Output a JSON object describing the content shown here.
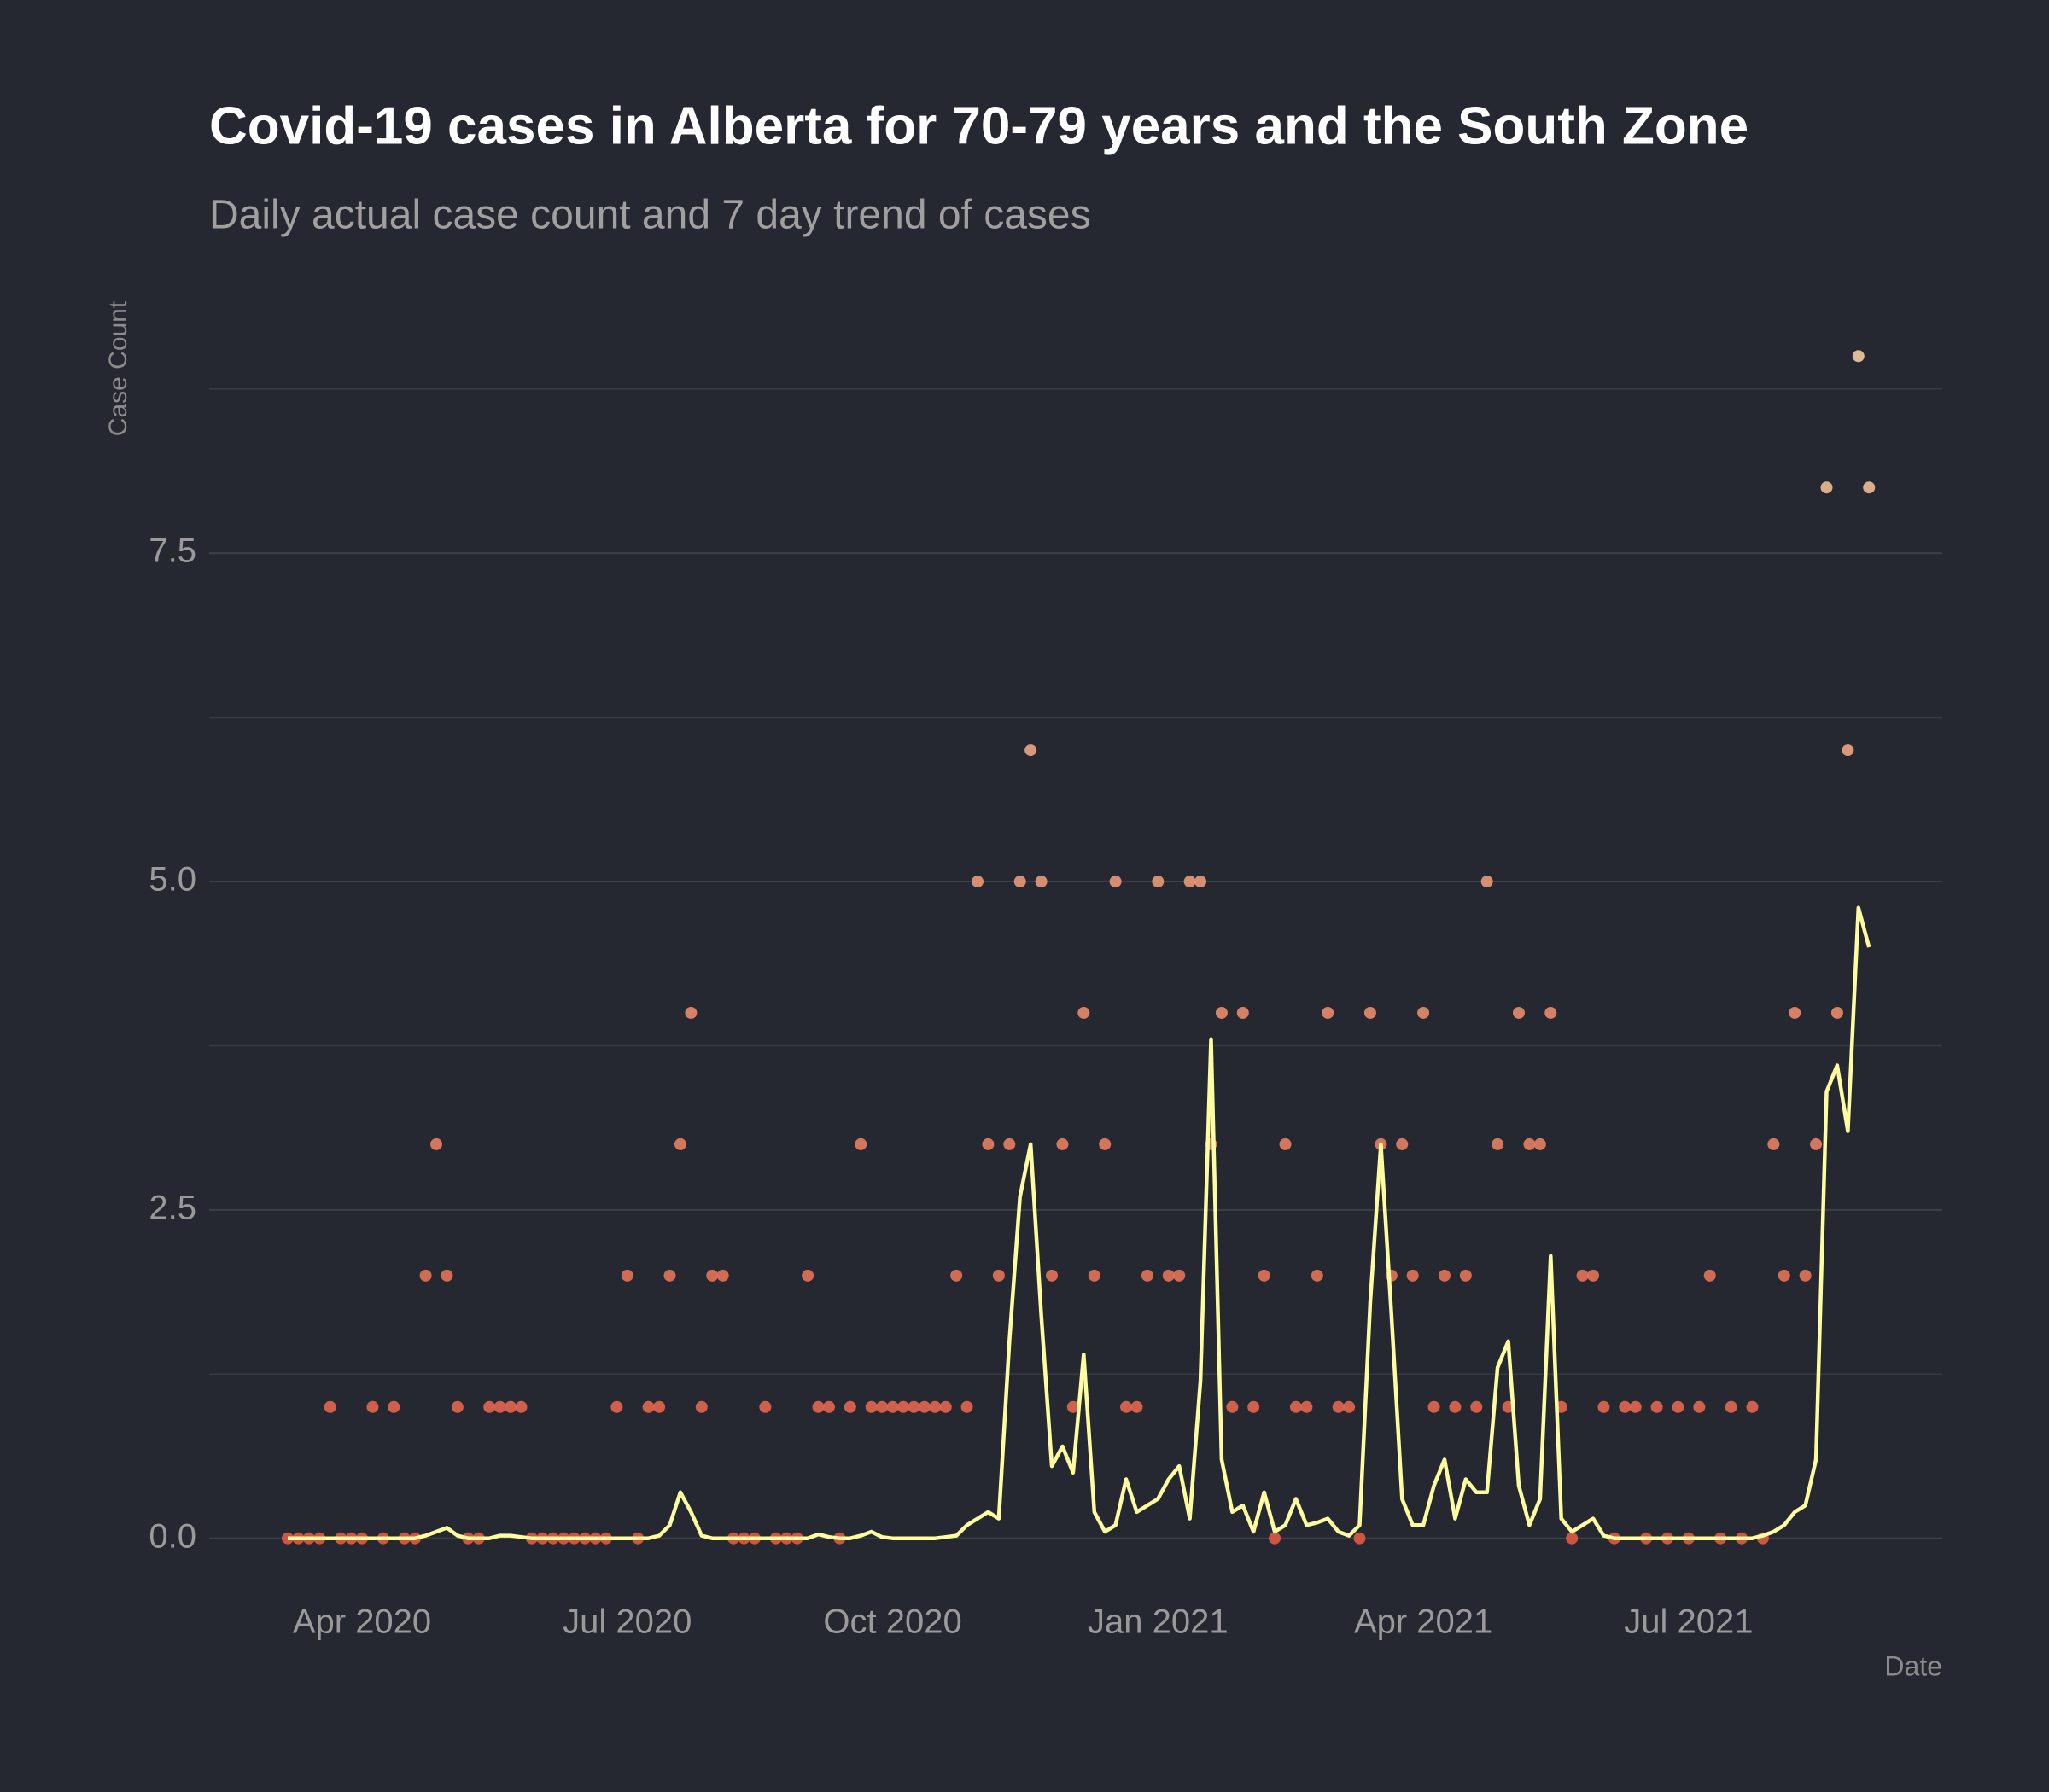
{
  "chart_data": {
    "type": "scatter",
    "title": "Covid-19 cases in Alberta for 70-79 years and the South Zone",
    "subtitle": "Daily actual case count and 7 day trend of cases",
    "y_label": "Case Count",
    "x_label": "Date",
    "x": [
      2020.18,
      2020.19,
      2020.2,
      2020.21,
      2020.22,
      2020.23,
      2020.24,
      2020.25,
      2020.26,
      2020.27,
      2020.28,
      2020.29,
      2020.3,
      2020.31,
      2020.32,
      2020.33,
      2020.34,
      2020.35,
      2020.36,
      2020.37,
      2020.38,
      2020.39,
      2020.4,
      2020.41,
      2020.42,
      2020.43,
      2020.44,
      2020.45,
      2020.46,
      2020.47,
      2020.48,
      2020.49,
      2020.5,
      2020.51,
      2020.52,
      2020.53,
      2020.54,
      2020.55,
      2020.56,
      2020.57,
      2020.58,
      2020.59,
      2020.6,
      2020.61,
      2020.62,
      2020.63,
      2020.64,
      2020.65,
      2020.66,
      2020.67,
      2020.68,
      2020.69,
      2020.7,
      2020.71,
      2020.72,
      2020.73,
      2020.74,
      2020.75,
      2020.76,
      2020.77,
      2020.78,
      2020.79,
      2020.8,
      2020.81,
      2020.82,
      2020.83,
      2020.84,
      2020.85,
      2020.86,
      2020.87,
      2020.88,
      2020.89,
      2020.9,
      2020.91,
      2020.92,
      2020.93,
      2020.94,
      2020.95,
      2020.96,
      2020.97,
      2020.98,
      2020.99,
      2021.0,
      2021.01,
      2021.02,
      2021.03,
      2021.04,
      2021.05,
      2021.06,
      2021.07,
      2021.08,
      2021.09,
      2021.1,
      2021.11,
      2021.12,
      2021.13,
      2021.14,
      2021.15,
      2021.16,
      2021.17,
      2021.18,
      2021.19,
      2021.2,
      2021.21,
      2021.22,
      2021.23,
      2021.24,
      2021.25,
      2021.26,
      2021.27,
      2021.28,
      2021.29,
      2021.3,
      2021.31,
      2021.32,
      2021.33,
      2021.34,
      2021.35,
      2021.36,
      2021.37,
      2021.38,
      2021.39,
      2021.4,
      2021.41,
      2021.42,
      2021.43,
      2021.44,
      2021.45,
      2021.46,
      2021.47,
      2021.48,
      2021.49,
      2021.5,
      2021.51,
      2021.52,
      2021.53,
      2021.54,
      2021.55,
      2021.56,
      2021.57,
      2021.58,
      2021.59,
      2021.6,
      2021.61,
      2021.62,
      2021.63,
      2021.64,
      2021.65,
      2021.66,
      2021.67
    ],
    "series": [
      {
        "type": "scatter",
        "color_low": "#e05a45",
        "color_high": "#f2c9a0",
        "values": [
          0,
          0,
          0,
          0,
          1,
          0,
          0,
          0,
          1,
          0,
          1,
          0,
          0,
          2,
          3,
          2,
          1,
          0,
          0,
          1,
          1,
          1,
          1,
          0,
          0,
          0,
          0,
          0,
          0,
          0,
          0,
          1,
          2,
          0,
          1,
          1,
          2,
          3,
          4,
          1,
          2,
          2,
          0,
          0,
          0,
          1,
          0,
          0,
          0,
          2,
          1,
          1,
          0,
          1,
          3,
          1,
          1,
          1,
          1,
          1,
          1,
          1,
          1,
          2,
          1,
          5,
          3,
          2,
          3,
          5,
          6,
          5,
          2,
          3,
          1,
          4,
          2,
          3,
          5,
          1,
          1,
          2,
          5,
          2,
          2,
          5,
          5,
          3,
          4,
          1,
          4,
          1,
          2,
          0,
          3,
          1,
          1,
          2,
          4,
          1,
          1,
          0,
          4,
          3,
          2,
          3,
          2,
          4,
          1,
          2,
          1,
          2,
          1,
          5,
          3,
          1,
          4,
          3,
          3,
          4,
          1,
          0,
          2,
          2,
          1,
          0,
          1,
          1,
          0,
          1,
          0,
          1,
          0,
          1,
          2,
          0,
          1,
          0,
          1,
          0,
          3,
          2,
          4,
          2,
          3,
          8,
          4,
          6,
          9,
          8
        ]
      },
      {
        "type": "line",
        "color": "#fdfca0",
        "values": [
          0,
          0,
          0,
          0,
          0,
          0,
          0,
          0,
          0,
          0,
          0,
          0,
          0,
          0.02,
          0.05,
          0.08,
          0.02,
          0,
          0,
          0,
          0.02,
          0.02,
          0.01,
          0,
          0,
          0,
          0,
          0,
          0,
          0,
          0,
          0,
          0,
          0,
          0,
          0.02,
          0.1,
          0.35,
          0.2,
          0.02,
          0,
          0,
          0,
          0,
          0,
          0,
          0,
          0,
          0,
          0,
          0.03,
          0.01,
          0,
          0,
          0.02,
          0.05,
          0.01,
          0,
          0,
          0,
          0,
          0,
          0.01,
          0.02,
          0.1,
          0.15,
          0.2,
          0.15,
          1.5,
          2.6,
          3.0,
          1.7,
          0.55,
          0.7,
          0.5,
          1.4,
          0.2,
          0.05,
          0.1,
          0.45,
          0.2,
          0.25,
          0.3,
          0.45,
          0.55,
          0.15,
          1.2,
          3.8,
          0.6,
          0.2,
          0.25,
          0.05,
          0.35,
          0.05,
          0.1,
          0.3,
          0.1,
          0.12,
          0.15,
          0.05,
          0.02,
          0.1,
          1.8,
          3.0,
          1.7,
          0.3,
          0.1,
          0.1,
          0.4,
          0.6,
          0.15,
          0.45,
          0.35,
          0.35,
          1.3,
          1.5,
          0.4,
          0.1,
          0.3,
          2.15,
          0.15,
          0.05,
          0.1,
          0.15,
          0.02,
          0,
          0,
          0,
          0,
          0,
          0,
          0,
          0,
          0,
          0,
          0,
          0,
          0,
          0,
          0.02,
          0.05,
          0.1,
          0.2,
          0.25,
          0.6,
          3.4,
          3.6,
          3.1,
          4.8,
          4.5
        ]
      }
    ],
    "xlim": [
      2020.106,
      2021.739
    ],
    "xticks": [
      {
        "value": 2020.25,
        "label": "Apr 2020"
      },
      {
        "value": 2020.5,
        "label": "Jul 2020"
      },
      {
        "value": 2020.75,
        "label": "Oct 2020"
      },
      {
        "value": 2021.0,
        "label": "Jan 2021"
      },
      {
        "value": 2021.25,
        "label": "Apr 2021"
      },
      {
        "value": 2021.5,
        "label": "Jul 2021"
      }
    ],
    "ylim": [
      -0.45,
      9.45
    ],
    "yticks": [
      {
        "value": 0,
        "label": "0.0"
      },
      2.5,
      {
        "value": 5,
        "label": "5.0"
      },
      7.5
    ],
    "minor_yticks": [
      1.25,
      3.75,
      6.25,
      8.75
    ],
    "grid": true
  }
}
